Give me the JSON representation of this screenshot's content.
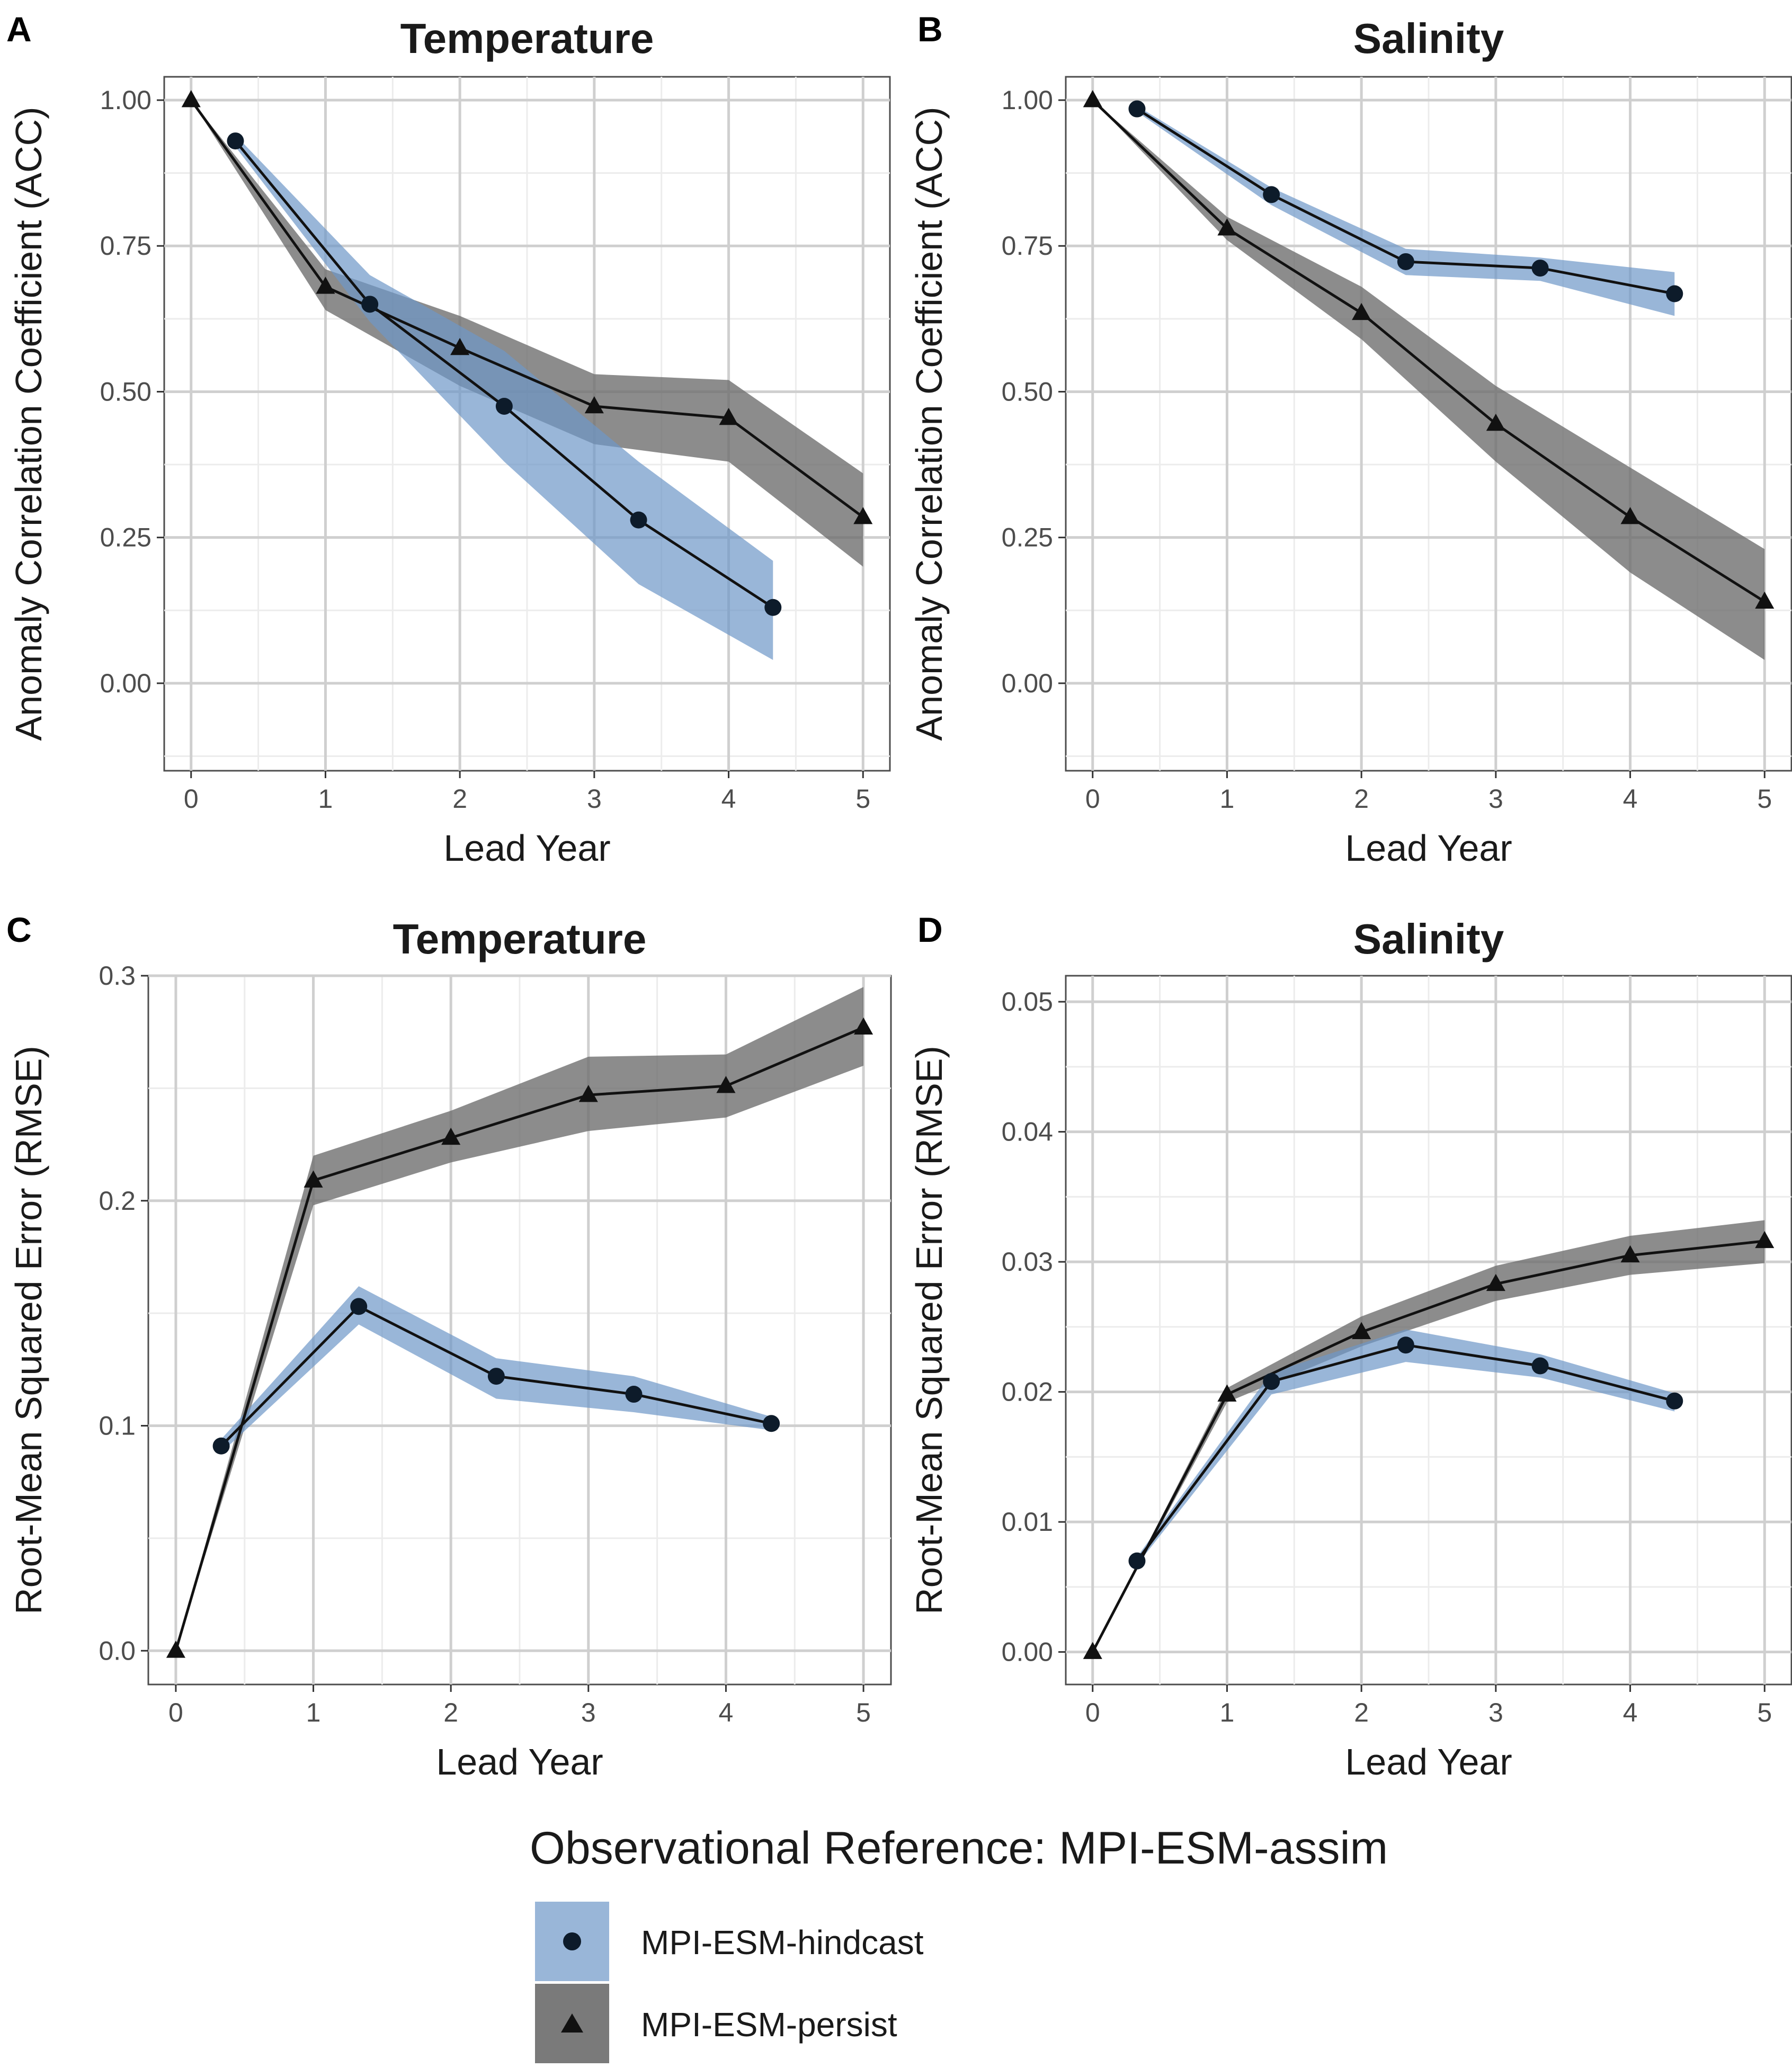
{
  "figure": {
    "legend": {
      "title": "Observational Reference: MPI-ESM-assim",
      "items": [
        {
          "label": "MPI-ESM-hindcast",
          "marker": "circle",
          "fill": "#6E97C8"
        },
        {
          "label": "MPI-ESM-persist",
          "marker": "triangle",
          "fill": "#7a7a7a"
        }
      ]
    },
    "colors": {
      "hindcast_band": "#6E97C8",
      "persist_band": "#6b6b6b",
      "line": "#111111",
      "marker": "#111111",
      "hindcast_marker": "#0d1b2a"
    }
  },
  "chart_data": [
    {
      "type": "line",
      "letter": "A",
      "title": "Temperature",
      "xlabel": "Lead Year",
      "ylabel": "Anomaly Correlation Coefficient (ACC)",
      "xlim": [
        -0.2,
        5.2
      ],
      "ylim": [
        -0.15,
        1.04
      ],
      "x_ticks": [
        0,
        1,
        2,
        3,
        4,
        5
      ],
      "x_tick_labels": [
        "0",
        "1",
        "2",
        "3",
        "4",
        "5"
      ],
      "y_ticks": [
        0,
        0.25,
        0.5,
        0.75,
        1.0
      ],
      "y_tick_labels": [
        "0.00",
        "0.25",
        "0.50",
        "0.75",
        "1.00"
      ],
      "series": [
        {
          "name": "MPI-ESM-hindcast",
          "marker": "circle",
          "x": [
            0.33,
            1.33,
            2.33,
            3.33,
            4.33
          ],
          "values": [
            0.93,
            0.65,
            0.475,
            0.28,
            0.13
          ],
          "lower": [
            0.92,
            0.62,
            0.38,
            0.17,
            0.04
          ],
          "upper": [
            0.94,
            0.7,
            0.57,
            0.38,
            0.21
          ]
        },
        {
          "name": "MPI-ESM-persist",
          "marker": "triangle",
          "x": [
            0,
            1,
            2,
            3,
            4,
            5
          ],
          "values": [
            1.0,
            0.68,
            0.575,
            0.475,
            0.455,
            0.285
          ],
          "lower": [
            1.0,
            0.64,
            0.51,
            0.41,
            0.38,
            0.2
          ],
          "upper": [
            1.0,
            0.71,
            0.63,
            0.53,
            0.52,
            0.36
          ]
        }
      ]
    },
    {
      "type": "line",
      "letter": "B",
      "title": "Salinity",
      "xlabel": "Lead Year",
      "ylabel": "Anomaly Correlation Coefficient (ACC)",
      "xlim": [
        -0.2,
        5.2
      ],
      "ylim": [
        -0.15,
        1.04
      ],
      "x_ticks": [
        0,
        1,
        2,
        3,
        4,
        5
      ],
      "x_tick_labels": [
        "0",
        "1",
        "2",
        "3",
        "4",
        "5"
      ],
      "y_ticks": [
        0,
        0.25,
        0.5,
        0.75,
        1.0
      ],
      "y_tick_labels": [
        "0.00",
        "0.25",
        "0.50",
        "0.75",
        "1.00"
      ],
      "series": [
        {
          "name": "MPI-ESM-hindcast",
          "marker": "circle",
          "x": [
            0.33,
            1.33,
            2.33,
            3.33,
            4.33
          ],
          "values": [
            0.985,
            0.838,
            0.723,
            0.712,
            0.668
          ],
          "lower": [
            0.98,
            0.82,
            0.7,
            0.69,
            0.63
          ],
          "upper": [
            0.99,
            0.85,
            0.745,
            0.73,
            0.705
          ]
        },
        {
          "name": "MPI-ESM-persist",
          "marker": "triangle",
          "x": [
            0,
            1,
            2,
            3,
            4,
            5
          ],
          "values": [
            1.0,
            0.78,
            0.635,
            0.445,
            0.285,
            0.14
          ],
          "lower": [
            1.0,
            0.76,
            0.59,
            0.38,
            0.19,
            0.04
          ],
          "upper": [
            1.0,
            0.8,
            0.68,
            0.51,
            0.37,
            0.23
          ]
        }
      ]
    },
    {
      "type": "line",
      "letter": "C",
      "title": "Temperature",
      "xlabel": "Lead Year",
      "ylabel": "Root-Mean Squared Error (RMSE)",
      "xlim": [
        -0.2,
        5.2
      ],
      "ylim": [
        -0.015,
        0.3
      ],
      "x_ticks": [
        0,
        1,
        2,
        3,
        4,
        5
      ],
      "x_tick_labels": [
        "0",
        "1",
        "2",
        "3",
        "4",
        "5"
      ],
      "y_ticks": [
        0,
        0.1,
        0.2,
        0.3
      ],
      "y_tick_labels": [
        "0.0",
        "0.1",
        "0.2",
        "0.3"
      ],
      "series": [
        {
          "name": "MPI-ESM-hindcast",
          "marker": "circle",
          "x": [
            0.33,
            1.33,
            2.33,
            3.33,
            4.33
          ],
          "values": [
            0.091,
            0.153,
            0.122,
            0.114,
            0.101
          ],
          "lower": [
            0.088,
            0.145,
            0.112,
            0.106,
            0.098
          ],
          "upper": [
            0.094,
            0.162,
            0.13,
            0.122,
            0.104
          ]
        },
        {
          "name": "MPI-ESM-persist",
          "marker": "triangle",
          "x": [
            0,
            1,
            2,
            3,
            4,
            5
          ],
          "values": [
            0.0,
            0.209,
            0.228,
            0.247,
            0.251,
            0.277
          ],
          "lower": [
            0.0,
            0.198,
            0.217,
            0.231,
            0.237,
            0.26
          ],
          "upper": [
            0.0,
            0.22,
            0.24,
            0.264,
            0.265,
            0.295
          ]
        }
      ]
    },
    {
      "type": "line",
      "letter": "D",
      "title": "Salinity",
      "xlabel": "Lead Year",
      "ylabel": "Root-Mean Squared Error (RMSE)",
      "xlim": [
        -0.2,
        5.2
      ],
      "ylim": [
        -0.0025,
        0.052
      ],
      "x_ticks": [
        0,
        1,
        2,
        3,
        4,
        5
      ],
      "x_tick_labels": [
        "0",
        "1",
        "2",
        "3",
        "4",
        "5"
      ],
      "y_ticks": [
        0,
        0.01,
        0.02,
        0.03,
        0.04,
        0.05
      ],
      "y_tick_labels": [
        "0.00",
        "0.01",
        "0.02",
        "0.03",
        "0.04",
        "0.05"
      ],
      "series": [
        {
          "name": "MPI-ESM-hindcast",
          "marker": "circle",
          "x": [
            0.33,
            1.33,
            2.33,
            3.33,
            4.33
          ],
          "values": [
            0.007,
            0.0208,
            0.0236,
            0.022,
            0.0193
          ],
          "lower": [
            0.0067,
            0.0198,
            0.0223,
            0.0211,
            0.0185
          ],
          "upper": [
            0.0073,
            0.0215,
            0.0248,
            0.0229,
            0.0199
          ]
        },
        {
          "name": "MPI-ESM-persist",
          "marker": "triangle",
          "x": [
            0,
            1,
            2,
            3,
            4,
            5
          ],
          "values": [
            0.0,
            0.0198,
            0.0246,
            0.0283,
            0.0305,
            0.0316
          ],
          "lower": [
            0.0,
            0.0192,
            0.0235,
            0.027,
            0.029,
            0.0299
          ],
          "upper": [
            0.0,
            0.0203,
            0.0258,
            0.0297,
            0.032,
            0.0332
          ]
        }
      ]
    }
  ]
}
